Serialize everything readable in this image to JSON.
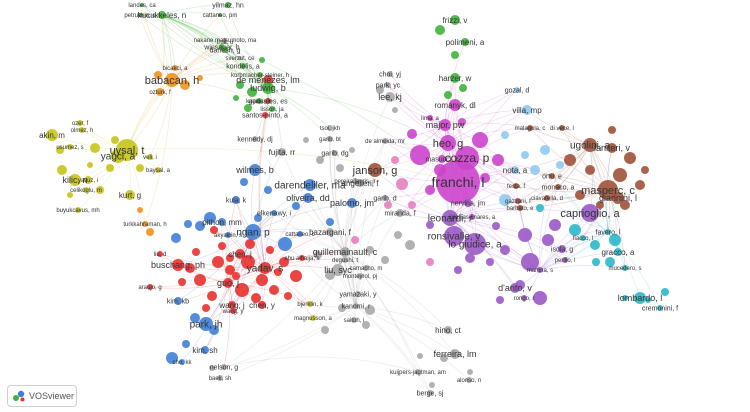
{
  "app": {
    "name": "VOSviewer",
    "logo_icon": "vosviewer-logo-icon"
  },
  "clusters": {
    "red": "#e8302f",
    "green": "#3fb43a",
    "blue": "#3f7fd6",
    "yellow": "#c6c41a",
    "purple": "#9b59c6",
    "cyan": "#2bb8c9",
    "orange": "#f0921e",
    "brown": "#a0523a",
    "pink": "#e67fc0",
    "gray": "#a9a9a9",
    "lightblue": "#8ecbf0",
    "magenta": "#cc44cc"
  },
  "nodes": [
    {
      "label": "landes, ca",
      "c": "green"
    },
    {
      "label": "yilmaz, hn",
      "c": "green"
    },
    {
      "label": "petruchin, o",
      "c": "green"
    },
    {
      "label": "kucukkeles, n",
      "c": "green"
    },
    {
      "label": "cattaneo, pm",
      "c": "green"
    },
    {
      "label": "frizzi, v",
      "c": "green"
    },
    {
      "label": "nakane matsumoto, ma",
      "c": "gray"
    },
    {
      "label": "fruit, u",
      "c": "gray"
    },
    {
      "label": "polimeni, a",
      "c": "green"
    },
    {
      "label": "winsauer, h",
      "c": "green"
    },
    {
      "label": "danesh, g",
      "c": "green"
    },
    {
      "label": "sverzut, ce",
      "c": "gray"
    },
    {
      "label": "kondelis, a",
      "c": "green"
    },
    {
      "label": "bicakci, a",
      "c": "orange"
    },
    {
      "label": "korbmacher-steiner, h",
      "c": "green"
    },
    {
      "label": "choi, yj",
      "c": "gray"
    },
    {
      "label": "harzer, w",
      "c": "green"
    },
    {
      "label": "babacan, h",
      "c": "orange"
    },
    {
      "label": "de menezes, lm",
      "c": "red"
    },
    {
      "label": "park, yc",
      "c": "gray"
    },
    {
      "label": "gozal, d",
      "c": "lightblue"
    },
    {
      "label": "ozturk, f",
      "c": "orange"
    },
    {
      "label": "ludwig, b",
      "c": "green"
    },
    {
      "label": "lee, kj",
      "c": "gray"
    },
    {
      "label": "goncales, es",
      "c": "red"
    },
    {
      "label": "kayalar, e",
      "c": "green"
    },
    {
      "label": "lisson, ja",
      "c": "green"
    },
    {
      "label": "romanyk, dl",
      "c": "magenta"
    },
    {
      "label": "villa, mp",
      "c": "lightblue"
    },
    {
      "label": "santos-pinto, a",
      "c": "red"
    },
    {
      "label": "lima, a",
      "c": "magenta"
    },
    {
      "label": "ozer, f",
      "c": "yellow"
    },
    {
      "label": "major, pw",
      "c": "magenta"
    },
    {
      "label": "malagola, c",
      "c": "brown"
    },
    {
      "label": "di vece, l",
      "c": "brown"
    },
    {
      "label": "akin, m",
      "c": "yellow"
    },
    {
      "label": "olmez, h",
      "c": "yellow"
    },
    {
      "label": "tsoi, jkh",
      "c": "gray"
    },
    {
      "label": "kennedy, dj",
      "c": "gray"
    },
    {
      "label": "garib, bt",
      "c": "gray"
    },
    {
      "label": "de almeida, mr",
      "c": "gray"
    },
    {
      "label": "heo, g",
      "c": "magenta"
    },
    {
      "label": "ugolini, a",
      "c": "brown"
    },
    {
      "label": "laniteri, v",
      "c": "brown"
    },
    {
      "label": "usumez, s",
      "c": "yellow"
    },
    {
      "label": "uysal, t",
      "c": "yellow"
    },
    {
      "label": "fujita, rr",
      "c": "gray"
    },
    {
      "label": "garib, dg",
      "c": "gray"
    },
    {
      "label": "cozza, p",
      "c": "magenta"
    },
    {
      "label": "yagci, a",
      "c": "yellow"
    },
    {
      "label": "veli, i",
      "c": "yellow"
    },
    {
      "label": "masucci, c",
      "c": "magenta"
    },
    {
      "label": "baysal, a",
      "c": "yellow"
    },
    {
      "label": "wilmes, b",
      "c": "blue"
    },
    {
      "label": "janson, g",
      "c": "brown"
    },
    {
      "label": "nota, a",
      "c": "lightblue"
    },
    {
      "label": "franchi, l",
      "c": "magenta"
    },
    {
      "label": "kilic, n",
      "c": "yellow"
    },
    {
      "label": "yavuz, i",
      "c": "yellow"
    },
    {
      "label": "angelieri, f",
      "c": "gray"
    },
    {
      "label": "pereira lauris, jr",
      "c": "gray"
    },
    {
      "label": "festa, f",
      "c": "brown"
    },
    {
      "label": "monaco, a",
      "c": "brown"
    },
    {
      "label": "masperc, c",
      "c": "brown"
    },
    {
      "label": "kurt, g",
      "c": "yellow"
    },
    {
      "label": "celikoglu, m",
      "c": "yellow"
    },
    {
      "label": "ortu, e",
      "c": "brown"
    },
    {
      "label": "ciavarella, d",
      "c": "brown"
    },
    {
      "label": "giannini, l",
      "c": "brown"
    },
    {
      "label": "buyukcavus, mh",
      "c": "yellow"
    },
    {
      "label": "darendeliler, ma",
      "c": "blue"
    },
    {
      "label": "oliveira, dd",
      "c": "blue"
    },
    {
      "label": "palomo, jm",
      "c": "blue"
    },
    {
      "label": "garib, d",
      "c": "gray"
    },
    {
      "label": "nervina, jm",
      "c": "purple"
    },
    {
      "label": "gazzani, f",
      "c": "brown"
    },
    {
      "label": "barbato, e",
      "c": "brown"
    },
    {
      "label": "kula, k",
      "c": "blue"
    },
    {
      "label": "turkkahraman, h",
      "c": "orange"
    },
    {
      "label": "elkenawy, i",
      "c": "blue"
    },
    {
      "label": "miranda, f",
      "c": "gray"
    },
    {
      "label": "iglesias-linares, a",
      "c": "purple"
    },
    {
      "label": "leonardi, r",
      "c": "purple"
    },
    {
      "label": "caprioglio, a",
      "c": "purple"
    },
    {
      "label": "pithon, mm",
      "c": "blue"
    },
    {
      "label": "akyalcin, s",
      "c": "blue"
    },
    {
      "label": "ngan, p",
      "c": "blue"
    },
    {
      "label": "cattaneo, c",
      "c": "blue"
    },
    {
      "label": "bazargani, f",
      "c": "gray"
    },
    {
      "label": "ronsivalle, v",
      "c": "purple"
    },
    {
      "label": "favero, l",
      "c": "cyan"
    },
    {
      "label": "guillemainault, c",
      "c": "gray"
    },
    {
      "label": "lo giudice, a",
      "c": "purple"
    },
    {
      "label": "fiacco, l",
      "c": "cyan"
    },
    {
      "label": "gracco, a",
      "c": "cyan"
    },
    {
      "label": "liu, d",
      "c": "red"
    },
    {
      "label": "chen, j",
      "c": "red"
    },
    {
      "label": "abu alhaija, s",
      "c": "red"
    },
    {
      "label": "degushi, t",
      "c": "gray"
    },
    {
      "label": "isola, g",
      "c": "purple"
    },
    {
      "label": "perillo, l",
      "c": "purple"
    },
    {
      "label": "buschang, ph",
      "c": "red"
    },
    {
      "label": "yadav, s",
      "c": "red"
    },
    {
      "label": "liu, syc",
      "c": "gray"
    },
    {
      "label": "camacho, m",
      "c": "gray"
    },
    {
      "label": "martina, s",
      "c": "purple"
    },
    {
      "label": "mucedero, s",
      "c": "cyan"
    },
    {
      "label": "araujo, g",
      "c": "red"
    },
    {
      "label": "guo, j",
      "c": "red"
    },
    {
      "label": "monteyrol, pj",
      "c": "gray"
    },
    {
      "label": "d'anto, v",
      "c": "purple"
    },
    {
      "label": "kim, kb",
      "c": "blue"
    },
    {
      "label": "wang, j",
      "c": "red"
    },
    {
      "label": "chen, y",
      "c": "red"
    },
    {
      "label": "bjerklin, k",
      "c": "yellow"
    },
    {
      "label": "yamazaki, y",
      "c": "gray"
    },
    {
      "label": "rongo, r",
      "c": "purple"
    },
    {
      "label": "lombardo, l",
      "c": "cyan"
    },
    {
      "label": "wang, y",
      "c": "red"
    },
    {
      "label": "kanomi, r",
      "c": "gray"
    },
    {
      "label": "cremonini, f",
      "c": "cyan"
    },
    {
      "label": "magnusson, a",
      "c": "yellow"
    },
    {
      "label": "saitoh, i",
      "c": "gray"
    },
    {
      "label": "park, jh",
      "c": "blue"
    },
    {
      "label": "hino, ct",
      "c": "gray"
    },
    {
      "label": "kim, sh",
      "c": "blue"
    },
    {
      "label": "ferreira, lm",
      "c": "gray"
    },
    {
      "label": "cho, kk",
      "c": "blue"
    },
    {
      "label": "nelson, g",
      "c": "gray"
    },
    {
      "label": "baek, sh",
      "c": "gray"
    },
    {
      "label": "kuijpers-jagtman, am",
      "c": "gray"
    },
    {
      "label": "alonso, n",
      "c": "gray"
    },
    {
      "label": "berge, sj",
      "c": "gray"
    }
  ]
}
